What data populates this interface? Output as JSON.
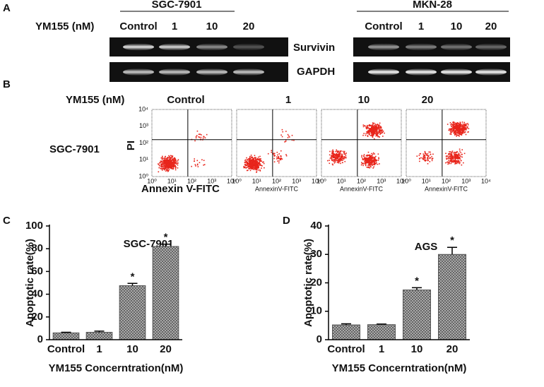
{
  "panel_labels": [
    "A",
    "B",
    "C",
    "D"
  ],
  "blot": {
    "treatment_label": "YM155 (nM)",
    "groups": [
      "SGC-7901",
      "MKN-28"
    ],
    "lanes": [
      "Control",
      "1",
      "10",
      "20"
    ],
    "bands": [
      "Survivin",
      "GAPDH"
    ]
  },
  "flow": {
    "treatment_label": "YM155 (nM)",
    "columns": [
      "Control",
      "1",
      "10",
      "20"
    ],
    "row_label": "SGC-7901",
    "y_label": "PI",
    "x_label": "Annexin V-FITC",
    "small_x_label": "AnnexinV-FITC",
    "tick_labels": [
      "10⁰",
      "10¹",
      "10²",
      "10³",
      "10⁴"
    ]
  },
  "chart_data": [
    {
      "type": "bar",
      "title": "SGC-7901",
      "y_label": "Apoptotic rate(%)",
      "x_label": "YM155 Concerntration(nM)",
      "categories": [
        "Control",
        "1",
        "10",
        "20"
      ],
      "values": [
        6,
        6.5,
        47.5,
        82
      ],
      "errors": [
        0.5,
        1,
        2,
        2
      ],
      "significance": [
        null,
        null,
        "*",
        "*"
      ],
      "ylim": [
        0,
        100
      ],
      "yticks": [
        0,
        20,
        40,
        60,
        80,
        100
      ],
      "color": "#555555"
    },
    {
      "type": "bar",
      "title": "AGS",
      "y_label": "Apoptotic rate(%)",
      "x_label": "YM155 Concerntration(nM)",
      "categories": [
        "Control",
        "1",
        "10",
        "20"
      ],
      "values": [
        5.2,
        5.3,
        17.5,
        30
      ],
      "errors": [
        0.4,
        0.2,
        0.8,
        2.5
      ],
      "significance": [
        null,
        null,
        "*",
        "*"
      ],
      "ylim": [
        0,
        40
      ],
      "yticks": [
        0,
        10,
        20,
        30,
        40
      ],
      "color": "#555555"
    }
  ]
}
